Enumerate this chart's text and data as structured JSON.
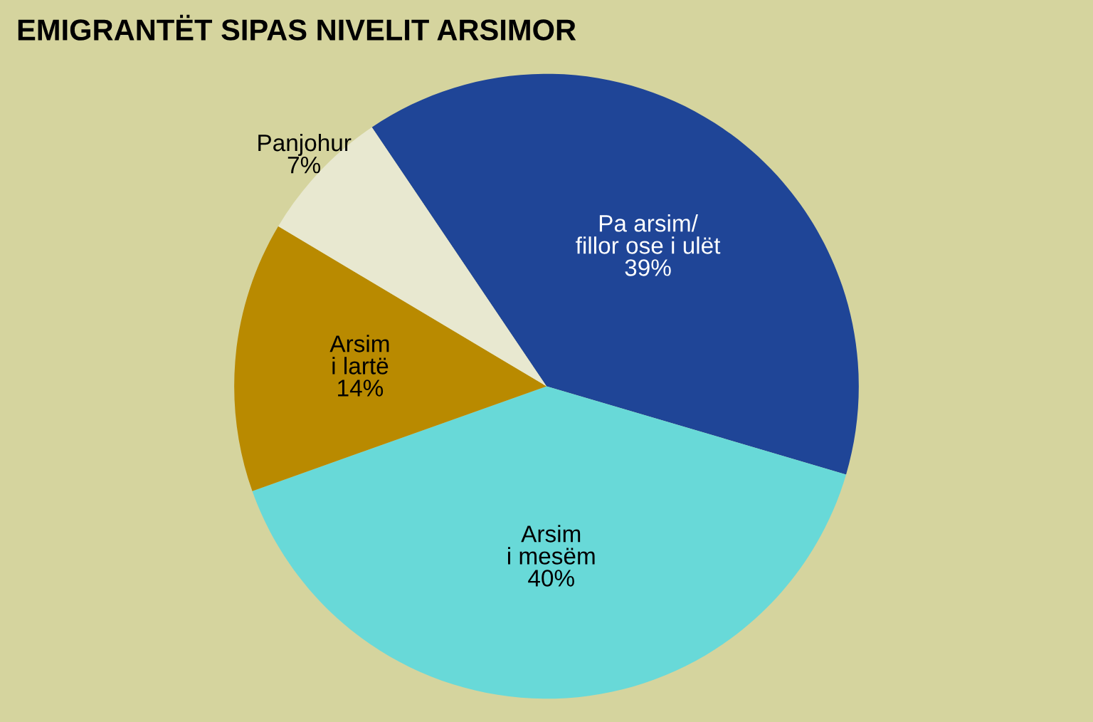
{
  "chart_data": {
    "type": "pie",
    "title": "EMIGRANTËT SIPAS NIVELIT ARSIMOR",
    "categories": [
      "Pa arsim/\nfillor ose i ulët",
      "Arsim\ni mesëm",
      "Arsim\ni lartë",
      "Panjohur"
    ],
    "values": [
      39,
      40,
      14,
      7
    ],
    "colors": [
      "#1f4597",
      "#68d9d8",
      "#b98a00",
      "#e8e8d0"
    ],
    "value_labels": [
      "39%",
      "40%",
      "14%",
      "7%"
    ]
  }
}
